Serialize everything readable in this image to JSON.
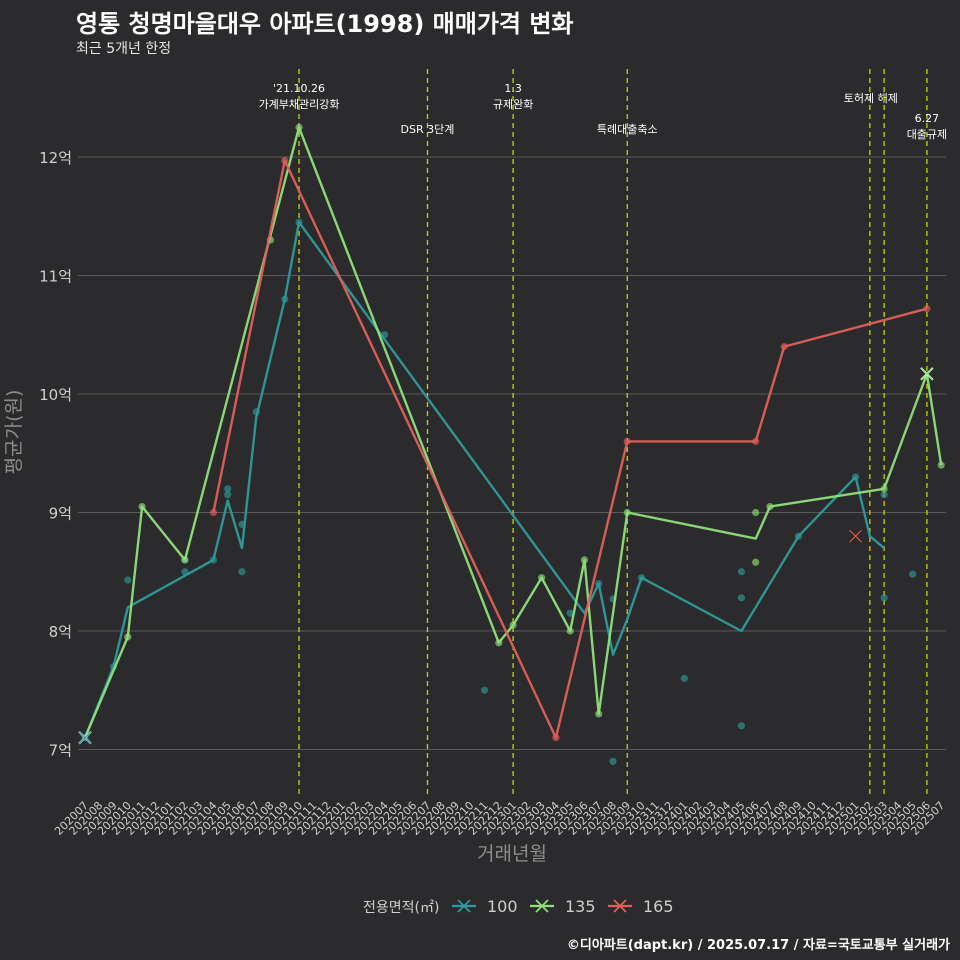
{
  "title": "영통 청명마을대우 아파트(1998) 매매가격 변화",
  "subtitle": "최근 5개년 한정",
  "caption": "©디아파트(dapt.kr) / 2025.07.17 / 자료=국토교통부 실거래가",
  "colors": {
    "background": "#2b2a2c",
    "grid": "#5a5a5a",
    "vline": "#c8d400"
  },
  "chart_data": {
    "type": "line",
    "xlabel": "거래년월",
    "ylabel": "평균가(원)",
    "ylim": [
      6.65,
      12.9
    ],
    "categories": [
      "202007",
      "202008",
      "202009",
      "202010",
      "202011",
      "202012",
      "202101",
      "202102",
      "202103",
      "202104",
      "202105",
      "202106",
      "202107",
      "202108",
      "202109",
      "202110",
      "202111",
      "202112",
      "202201",
      "202202",
      "202203",
      "202204",
      "202205",
      "202206",
      "202207",
      "202208",
      "202209",
      "202210",
      "202211",
      "202212",
      "202301",
      "202302",
      "202303",
      "202304",
      "202305",
      "202306",
      "202307",
      "202308",
      "202309",
      "202310",
      "202311",
      "202312",
      "202401",
      "202402",
      "202403",
      "202404",
      "202405",
      "202406",
      "202407",
      "202408",
      "202409",
      "202410",
      "202411",
      "202412",
      "202501",
      "202502",
      "202503",
      "202504",
      "202505",
      "202506",
      "202507"
    ],
    "y_ticks": [
      {
        "value": 7,
        "label": "7억"
      },
      {
        "value": 8,
        "label": "8억"
      },
      {
        "value": 9,
        "label": "9억"
      },
      {
        "value": 10,
        "label": "10억"
      },
      {
        "value": 11,
        "label": "11억"
      },
      {
        "value": 12,
        "label": "12억"
      }
    ],
    "grid": true,
    "legend": {
      "title": "전용면적(㎡)",
      "position": "bottom"
    },
    "series": [
      {
        "name": "100",
        "color": "#2e9a9a",
        "line": [
          {
            "x": "202007",
            "y": 7.1
          },
          {
            "x": "202009",
            "y": 7.7
          },
          {
            "x": "202010",
            "y": 8.2
          },
          {
            "x": "202104",
            "y": 8.6
          },
          {
            "x": "202105",
            "y": 9.1
          },
          {
            "x": "202106",
            "y": 8.7
          },
          {
            "x": "202107",
            "y": 9.8
          },
          {
            "x": "202109",
            "y": 10.8
          },
          {
            "x": "202110",
            "y": 11.45
          },
          {
            "x": "202306",
            "y": 8.15
          },
          {
            "x": "202307",
            "y": 8.4
          },
          {
            "x": "202308",
            "y": 7.8
          },
          {
            "x": "202309",
            "y": 8.1
          },
          {
            "x": "202310",
            "y": 8.45
          },
          {
            "x": "202405",
            "y": 8.0
          },
          {
            "x": "202409",
            "y": 8.8
          },
          {
            "x": "202501",
            "y": 9.3
          },
          {
            "x": "202502",
            "y": 8.8
          },
          {
            "x": "202503",
            "y": 8.7
          }
        ],
        "points": [
          {
            "x": "202007",
            "y": 7.1
          },
          {
            "x": "202009",
            "y": 7.7
          },
          {
            "x": "202010",
            "y": 8.43
          },
          {
            "x": "202102",
            "y": 8.6
          },
          {
            "x": "202102",
            "y": 8.5
          },
          {
            "x": "202104",
            "y": 8.6
          },
          {
            "x": "202105",
            "y": 9.2
          },
          {
            "x": "202105",
            "y": 9.15
          },
          {
            "x": "202106",
            "y": 8.9
          },
          {
            "x": "202106",
            "y": 8.5
          },
          {
            "x": "202107",
            "y": 9.85
          },
          {
            "x": "202109",
            "y": 10.8
          },
          {
            "x": "202110",
            "y": 11.45
          },
          {
            "x": "202204",
            "y": 10.5
          },
          {
            "x": "202211",
            "y": 7.5
          },
          {
            "x": "202305",
            "y": 8.15
          },
          {
            "x": "202307",
            "y": 8.4
          },
          {
            "x": "202308",
            "y": 8.27
          },
          {
            "x": "202308",
            "y": 6.9
          },
          {
            "x": "202310",
            "y": 8.45
          },
          {
            "x": "202401",
            "y": 7.6
          },
          {
            "x": "202405",
            "y": 8.5
          },
          {
            "x": "202405",
            "y": 8.28
          },
          {
            "x": "202405",
            "y": 7.2
          },
          {
            "x": "202409",
            "y": 8.8
          },
          {
            "x": "202501",
            "y": 9.3
          },
          {
            "x": "202503",
            "y": 9.15
          },
          {
            "x": "202503",
            "y": 8.28
          },
          {
            "x": "202505",
            "y": 8.48
          }
        ]
      },
      {
        "name": "135",
        "color": "#8ee07a",
        "line": [
          {
            "x": "202007",
            "y": 7.1
          },
          {
            "x": "202010",
            "y": 7.95
          },
          {
            "x": "202011",
            "y": 9.05
          },
          {
            "x": "202102",
            "y": 8.6
          },
          {
            "x": "202110",
            "y": 12.25
          },
          {
            "x": "202212",
            "y": 7.9
          },
          {
            "x": "202301",
            "y": 8.05
          },
          {
            "x": "202303",
            "y": 8.45
          },
          {
            "x": "202305",
            "y": 8.0
          },
          {
            "x": "202306",
            "y": 8.6
          },
          {
            "x": "202307",
            "y": 7.3
          },
          {
            "x": "202309",
            "y": 9.0
          },
          {
            "x": "202406",
            "y": 8.78
          },
          {
            "x": "202407",
            "y": 9.05
          },
          {
            "x": "202503",
            "y": 9.2
          },
          {
            "x": "202506",
            "y": 10.17
          },
          {
            "x": "202507",
            "y": 9.4
          }
        ],
        "points": [
          {
            "x": "202010",
            "y": 7.95
          },
          {
            "x": "202011",
            "y": 9.05
          },
          {
            "x": "202102",
            "y": 8.6
          },
          {
            "x": "202108",
            "y": 11.3
          },
          {
            "x": "202110",
            "y": 12.25
          },
          {
            "x": "202212",
            "y": 7.9
          },
          {
            "x": "202301",
            "y": 8.05
          },
          {
            "x": "202303",
            "y": 8.45
          },
          {
            "x": "202305",
            "y": 8.0
          },
          {
            "x": "202306",
            "y": 8.6
          },
          {
            "x": "202307",
            "y": 7.3
          },
          {
            "x": "202309",
            "y": 9.0
          },
          {
            "x": "202406",
            "y": 9.0
          },
          {
            "x": "202406",
            "y": 8.58
          },
          {
            "x": "202407",
            "y": 9.05
          },
          {
            "x": "202503",
            "y": 9.2
          },
          {
            "x": "202507",
            "y": 9.4
          }
        ]
      },
      {
        "name": "165",
        "color": "#e0605a",
        "line": [
          {
            "x": "202104",
            "y": 9.0
          },
          {
            "x": "202109",
            "y": 11.97
          },
          {
            "x": "202304",
            "y": 7.1
          },
          {
            "x": "202309",
            "y": 9.6
          },
          {
            "x": "202406",
            "y": 9.6
          },
          {
            "x": "202408",
            "y": 10.4
          },
          {
            "x": "202506",
            "y": 10.72
          }
        ],
        "points": [
          {
            "x": "202104",
            "y": 9.0
          },
          {
            "x": "202109",
            "y": 11.97
          },
          {
            "x": "202304",
            "y": 7.1
          },
          {
            "x": "202309",
            "y": 9.6
          },
          {
            "x": "202406",
            "y": 9.6
          },
          {
            "x": "202408",
            "y": 10.4
          },
          {
            "x": "202506",
            "y": 10.72
          }
        ]
      }
    ],
    "cross_markers": [
      {
        "x": "202007",
        "y": 7.1,
        "series": "100"
      },
      {
        "x": "202501",
        "y": 8.8,
        "series": "165"
      },
      {
        "x": "202506",
        "y": 10.17,
        "series": "135"
      }
    ],
    "annotations": [
      {
        "x": "202110",
        "lines": [
          "'21.10.26",
          "가계부채관리강화"
        ],
        "level": "top"
      },
      {
        "x": "202207",
        "lines": [
          "DSR 3단계"
        ],
        "level": "low"
      },
      {
        "x": "202301",
        "lines": [
          "1.3",
          "규제완화"
        ],
        "level": "top"
      },
      {
        "x": "202309",
        "lines": [
          "특례대출축소"
        ],
        "level": "low"
      },
      {
        "x": "202502",
        "lines": [
          "토허제 해제"
        ],
        "level": "mid",
        "align": "end",
        "dx": 28
      },
      {
        "x": "202503",
        "lines": [],
        "level": "mid"
      },
      {
        "x": "202506",
        "lines": [
          "6.27",
          "대출규제"
        ],
        "level": "low2"
      }
    ]
  }
}
